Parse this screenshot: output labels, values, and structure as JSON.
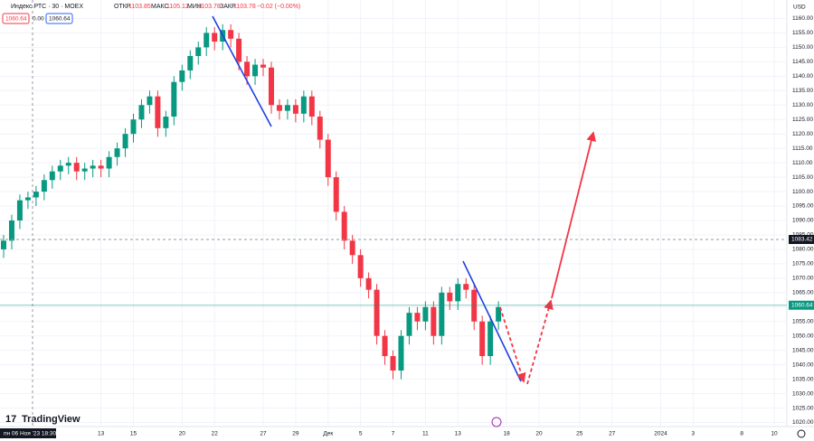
{
  "header": {
    "symbol": "Индекс РТС · 30 · MOEX",
    "open_label": "ОТКР",
    "open": "1103.85",
    "high_label": "МАКС",
    "high": "1105.12",
    "low_label": "МИН",
    "low": "1103.78",
    "close_label": "ЗАКР",
    "close": "1103.78",
    "change": "−0.02 (−0.00%)",
    "box1": "1060.64",
    "box2": "0.00",
    "box3": "1060.64"
  },
  "currency": "USD",
  "logo": "TradingView",
  "crosshair_time": "пн 06 Ноя '23 18:30",
  "chart_data": {
    "type": "candlestick",
    "up_color": "#089981",
    "down_color": "#f23645",
    "x": [
      0,
      1,
      2,
      3,
      4,
      5,
      6,
      7,
      8,
      9,
      10,
      11,
      12,
      13,
      14,
      15,
      16,
      17,
      18,
      19,
      20,
      21,
      22,
      23,
      24,
      25,
      26,
      27,
      28,
      29,
      30,
      31,
      32,
      33,
      34,
      35,
      36,
      37,
      38,
      39,
      40,
      41,
      42,
      43,
      44,
      45,
      46,
      47,
      48,
      49,
      50,
      51,
      52,
      53,
      54,
      55,
      56,
      57,
      58,
      59,
      60,
      61
    ],
    "open": [
      1080,
      1083,
      1090,
      1097,
      1098,
      1100,
      1104,
      1107,
      1109,
      1110,
      1107,
      1108,
      1109,
      1108,
      1112,
      1115,
      1120,
      1125,
      1130,
      1133,
      1122,
      1126,
      1138,
      1142,
      1147,
      1150,
      1155,
      1152,
      1156,
      1153,
      1145,
      1140,
      1144,
      1143,
      1130,
      1128,
      1130,
      1127,
      1133,
      1126,
      1118,
      1105,
      1093,
      1083,
      1078,
      1070,
      1066,
      1050,
      1043,
      1038,
      1050,
      1058,
      1055,
      1060,
      1050,
      1065,
      1062,
      1068,
      1066,
      1055,
      1043,
      1055
    ],
    "high": [
      1085,
      1092,
      1099,
      1100,
      1102,
      1106,
      1109,
      1111,
      1112,
      1112,
      1110,
      1111,
      1111,
      1114,
      1117,
      1122,
      1127,
      1132,
      1135,
      1135,
      1128,
      1140,
      1144,
      1149,
      1152,
      1157,
      1157,
      1158,
      1158,
      1155,
      1147,
      1146,
      1146,
      1145,
      1132,
      1132,
      1132,
      1135,
      1135,
      1128,
      1120,
      1107,
      1095,
      1085,
      1080,
      1072,
      1068,
      1052,
      1045,
      1052,
      1060,
      1060,
      1062,
      1062,
      1067,
      1067,
      1070,
      1070,
      1068,
      1057,
      1057,
      1062
    ],
    "low": [
      1077,
      1080,
      1087,
      1094,
      1095,
      1097,
      1101,
      1104,
      1106,
      1104,
      1104,
      1105,
      1105,
      1105,
      1109,
      1112,
      1117,
      1122,
      1127,
      1119,
      1119,
      1123,
      1135,
      1139,
      1144,
      1147,
      1149,
      1149,
      1150,
      1142,
      1137,
      1137,
      1140,
      1127,
      1125,
      1125,
      1124,
      1124,
      1123,
      1115,
      1102,
      1090,
      1080,
      1075,
      1067,
      1063,
      1047,
      1040,
      1035,
      1035,
      1047,
      1052,
      1052,
      1047,
      1047,
      1059,
      1059,
      1063,
      1052,
      1040,
      1040,
      1052
    ],
    "close": [
      1083,
      1090,
      1097,
      1098,
      1100,
      1104,
      1107,
      1109,
      1110,
      1107,
      1108,
      1109,
      1108,
      1112,
      1115,
      1120,
      1125,
      1130,
      1133,
      1122,
      1126,
      1138,
      1142,
      1147,
      1150,
      1155,
      1152,
      1156,
      1153,
      1145,
      1140,
      1144,
      1143,
      1130,
      1128,
      1130,
      1127,
      1133,
      1126,
      1118,
      1105,
      1093,
      1083,
      1078,
      1070,
      1066,
      1050,
      1043,
      1038,
      1050,
      1058,
      1055,
      1060,
      1050,
      1065,
      1062,
      1068,
      1066,
      1055,
      1043,
      1055,
      1060
    ],
    "xlim": [
      0,
      97
    ],
    "xticks": [
      {
        "value": 12,
        "label": "13"
      },
      {
        "value": 16,
        "label": "15"
      },
      {
        "value": 22,
        "label": "20"
      },
      {
        "value": 26,
        "label": "22"
      },
      {
        "value": 32,
        "label": "27"
      },
      {
        "value": 36,
        "label": "29"
      },
      {
        "value": 40,
        "label": "Дек"
      },
      {
        "value": 44,
        "label": "5"
      },
      {
        "value": 48,
        "label": "7"
      },
      {
        "value": 52,
        "label": "11"
      },
      {
        "value": 56,
        "label": "13"
      },
      {
        "value": 62,
        "label": "18"
      },
      {
        "value": 66,
        "label": "20"
      },
      {
        "value": 71,
        "label": "25"
      },
      {
        "value": 75,
        "label": "27"
      },
      {
        "value": 81,
        "label": "2024"
      },
      {
        "value": 85,
        "label": "3"
      },
      {
        "value": 91,
        "label": "8"
      },
      {
        "value": 95,
        "label": "10"
      }
    ],
    "ylim": [
      1018.59,
      1166.41
    ],
    "yticks": [
      {
        "value": 1020,
        "label": "1020.00"
      },
      {
        "value": 1025,
        "label": "1025.00"
      },
      {
        "value": 1030,
        "label": "1030.00"
      },
      {
        "value": 1035,
        "label": "1035.00"
      },
      {
        "value": 1040,
        "label": "1040.00"
      },
      {
        "value": 1045,
        "label": "1045.00"
      },
      {
        "value": 1050,
        "label": "1050.00"
      },
      {
        "value": 1055,
        "label": "1055.00"
      },
      {
        "value": 1060,
        "label": "1060.00"
      },
      {
        "value": 1065,
        "label": "1065.00"
      },
      {
        "value": 1070,
        "label": "1070.00"
      },
      {
        "value": 1075,
        "label": "1075.00"
      },
      {
        "value": 1080,
        "label": "1080.00"
      },
      {
        "value": 1085,
        "label": "1085.00"
      },
      {
        "value": 1090,
        "label": "1090.00"
      },
      {
        "value": 1095,
        "label": "1095.00"
      },
      {
        "value": 1100,
        "label": "1100.00"
      },
      {
        "value": 1105,
        "label": "1105.00"
      },
      {
        "value": 1110,
        "label": "1110.00"
      },
      {
        "value": 1115,
        "label": "1115.00"
      },
      {
        "value": 1120,
        "label": "1120.00"
      },
      {
        "value": 1125,
        "label": "1125.00"
      },
      {
        "value": 1130,
        "label": "1130.00"
      },
      {
        "value": 1135,
        "label": "1135.00"
      },
      {
        "value": 1140,
        "label": "1140.00"
      },
      {
        "value": 1145,
        "label": "1145.00"
      },
      {
        "value": 1150,
        "label": "1150.00"
      },
      {
        "value": 1155,
        "label": "1155.00"
      },
      {
        "value": 1160,
        "label": "1160.00"
      }
    ],
    "crosshair_price": 1083.42,
    "last_price": 1060.64
  }
}
